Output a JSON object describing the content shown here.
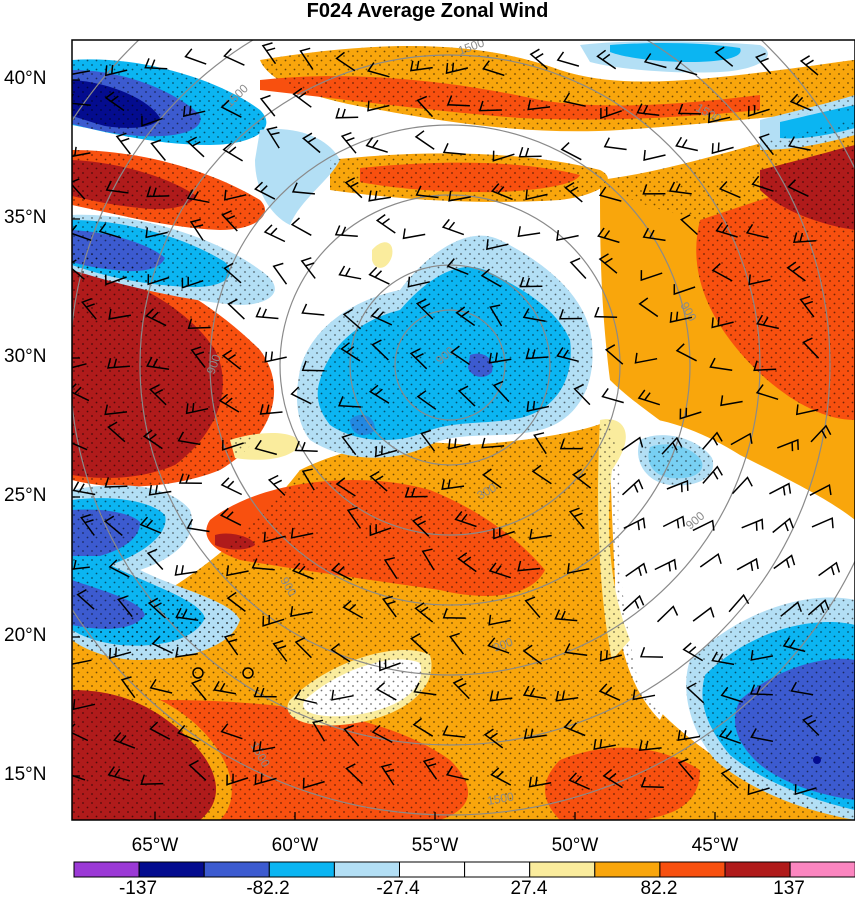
{
  "title": "F024 Average Zonal Wind",
  "lat_labels": [
    "40°N",
    "35°N",
    "30°N",
    "25°N",
    "20°N",
    "15°N"
  ],
  "lon_labels": [
    "65°W",
    "60°W",
    "55°W",
    "50°W",
    "45°W"
  ],
  "colorbar": {
    "colors": [
      "#9b39d6",
      "#040c8f",
      "#3c5bd0",
      "#0bb5f2",
      "#b3dff5",
      "#ffffff",
      "#ffffff",
      "#faec9d",
      "#f9a60c",
      "#f8500f",
      "#b01b1b",
      "#fb86c0"
    ],
    "labels": [
      "-137",
      "-82.2",
      "-27.4",
      "27.4",
      "82.2",
      "137"
    ]
  },
  "contour_labels": [
    "1500",
    "1500",
    "1500",
    "900",
    "900",
    "900",
    "900",
    "900",
    "300",
    "1500",
    "900",
    "1500"
  ],
  "colors": {
    "dark_red": "#b01b1b",
    "red": "#f8500f",
    "orange": "#f9a60c",
    "yellow": "#faec9d",
    "white": "#ffffff",
    "light_blue": "#b3dff5",
    "cyan": "#0bb5f2",
    "blue": "#3c5bd0",
    "navy": "#040c8f"
  }
}
